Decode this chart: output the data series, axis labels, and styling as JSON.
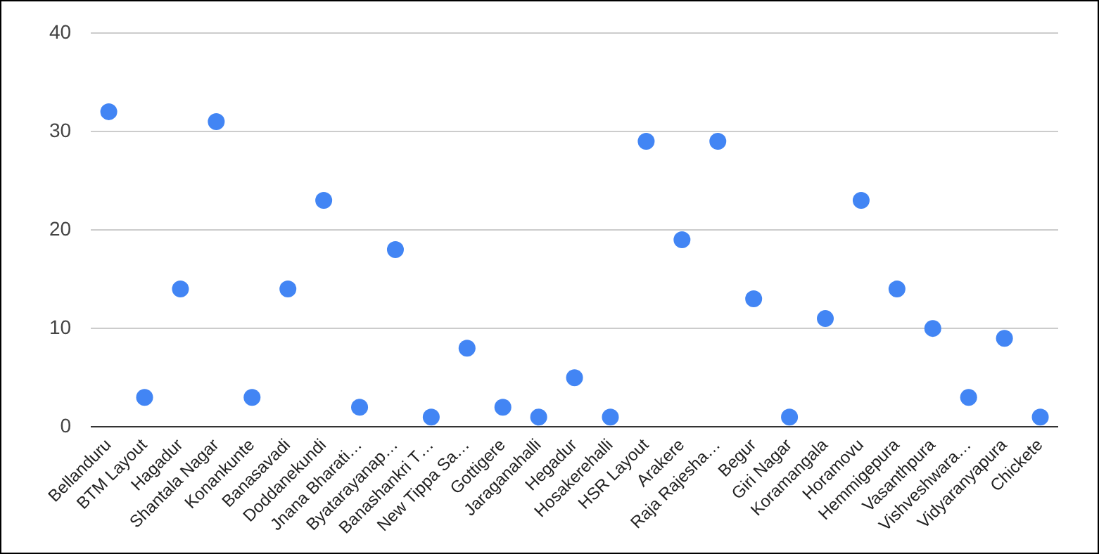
{
  "chart_data": {
    "type": "scatter",
    "categories": [
      "Bellanduru",
      "BTM Layout",
      "Hagadur",
      "Shantala Nagar",
      "Konankunte",
      "Banasavadi",
      "Doddanekundi",
      "Jnana Bharati…",
      "Byatarayanap…",
      "Banashankri T…",
      "New Tippa Sa…",
      "Gottigere",
      "Jaraganahalli",
      "Hegadur",
      "Hosakerehalli",
      "HSR Layout",
      "Arakere",
      "Raja Rajesha…",
      "Begur",
      "Giri Nagar",
      "Koramangala",
      "Horamovu",
      "Hemmigepura",
      "Vasanthpura",
      "Vishveshwara…",
      "Vidyaranyapura",
      "Chickete"
    ],
    "series": [
      {
        "color": "#4285f4",
        "values": [
          32,
          3,
          14,
          31,
          3,
          14,
          23,
          2,
          18,
          1,
          8,
          2,
          1,
          5,
          1,
          29,
          19,
          29,
          13,
          1,
          11,
          23,
          14,
          10,
          3,
          9,
          1
        ]
      }
    ],
    "ylim": [
      0,
      40
    ],
    "yticks": [
      0,
      10,
      20,
      30,
      40
    ],
    "grid": "y",
    "legend": false,
    "marker": "circle"
  }
}
